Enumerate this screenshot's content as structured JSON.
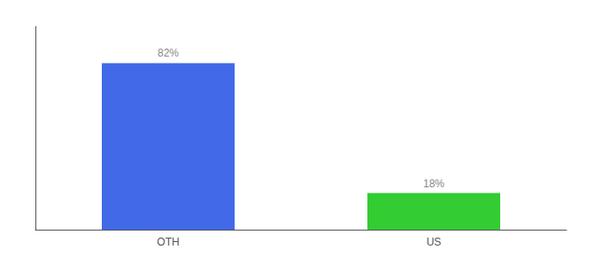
{
  "chart_data": {
    "type": "bar",
    "categories": [
      "OTH",
      "US"
    ],
    "values": [
      82,
      18
    ],
    "value_labels": [
      "82%",
      "18%"
    ],
    "colors": [
      "#4169e8",
      "#33cc33"
    ],
    "ylim": [
      0,
      100
    ],
    "grid": false,
    "data_labels": true,
    "tick_labels": "x"
  }
}
